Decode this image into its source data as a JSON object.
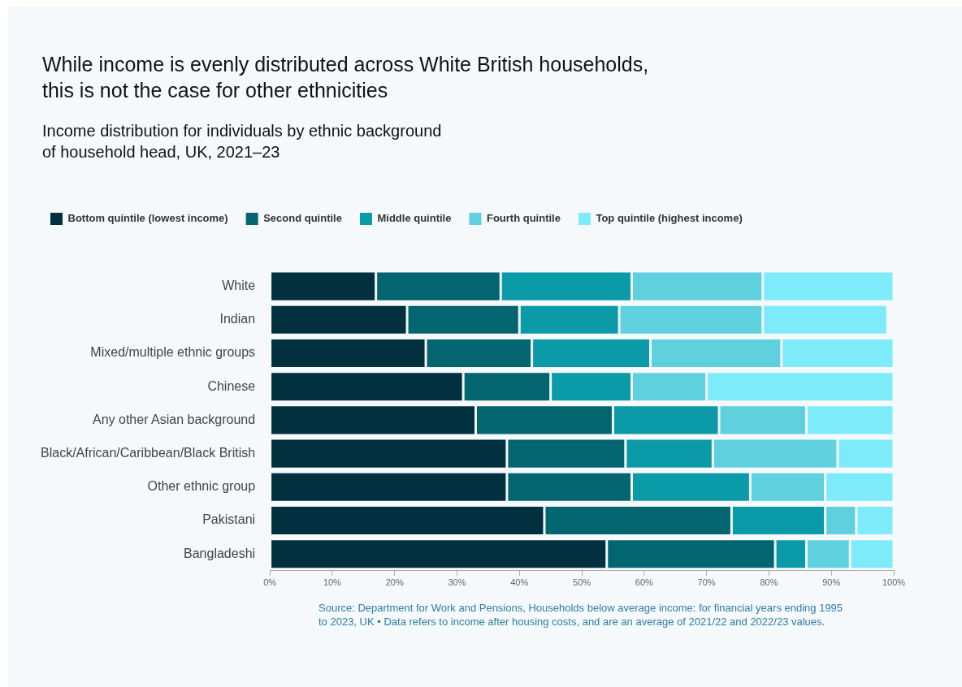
{
  "chart_data": {
    "type": "bar",
    "orientation": "horizontal",
    "stacked": true,
    "title": "While income is evenly distributed across White British households,\nthis is not the case for other ethnicities",
    "subtitle": "Income distribution for individuals by ethnic background\nof household head, UK, 2021–23",
    "categories": [
      "White",
      "Indian",
      "Mixed/multiple ethnic groups",
      "Chinese",
      "Any other Asian background",
      "Black/African/Caribbean/Black British",
      "Other ethnic group",
      "Pakistani",
      "Bangladeshi"
    ],
    "series": [
      {
        "name": "Bottom quintile (lowest income)",
        "color": "#02303f",
        "values": [
          17,
          22,
          25,
          31,
          33,
          38,
          38,
          44,
          54
        ]
      },
      {
        "name": "Second quintile",
        "color": "#02656f",
        "values": [
          20,
          18,
          17,
          14,
          22,
          19,
          20,
          30,
          27
        ]
      },
      {
        "name": "Middle quintile",
        "color": "#0a9aa8",
        "values": [
          21,
          16,
          19,
          13,
          17,
          14,
          19,
          15,
          5
        ]
      },
      {
        "name": "Fourth quintile",
        "color": "#5fd1de",
        "values": [
          21,
          23,
          21,
          12,
          14,
          20,
          12,
          5,
          7
        ]
      },
      {
        "name": "Top quintile (highest income)",
        "color": "#7eebfb",
        "values": [
          21,
          20,
          18,
          30,
          14,
          9,
          11,
          6,
          7
        ]
      }
    ],
    "xlim": [
      0,
      100
    ],
    "xticks": [
      {
        "value": 0,
        "label": "0%"
      },
      {
        "value": 10,
        "label": "10%"
      },
      {
        "value": 20,
        "label": "20%"
      },
      {
        "value": 30,
        "label": "30%"
      },
      {
        "value": 40,
        "label": "40%"
      },
      {
        "value": 50,
        "label": "50%"
      },
      {
        "value": 60,
        "label": "60%"
      },
      {
        "value": 70,
        "label": "70%"
      },
      {
        "value": 80,
        "label": "80%"
      },
      {
        "value": 90,
        "label": "90%"
      },
      {
        "value": 100,
        "label": "100%"
      }
    ],
    "grid": false,
    "legend": "top left",
    "annotations": [
      "Source: Department for Work and Pensions, Households below average income: for financial years ending 1995 to 2023, UK • Data refers to income after housing costs, and are an average of 2021/22 and 2022/23 values."
    ]
  }
}
